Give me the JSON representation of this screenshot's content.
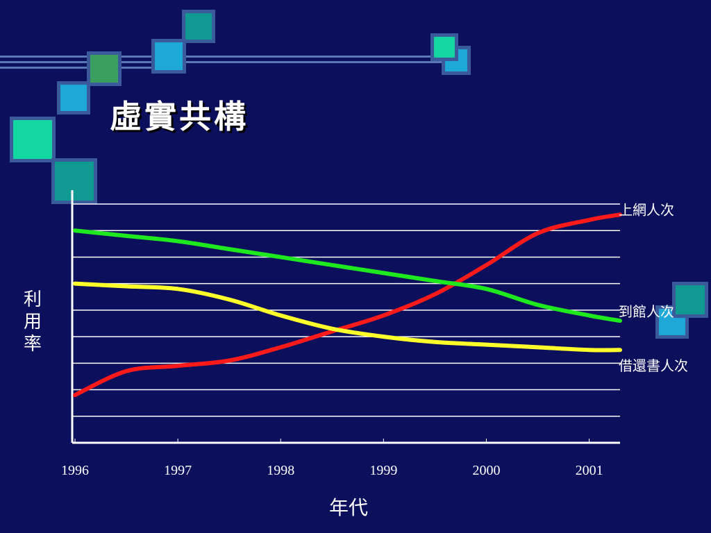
{
  "slide": {
    "title": "虛實共構"
  },
  "decor": {
    "colors": [
      "#0f9a92",
      "#1da8d8",
      "#3aa060",
      "#13d6a0",
      "#3a5a9c"
    ]
  },
  "chart_data": {
    "type": "line",
    "xlabel": "年代",
    "ylabel": "利用率",
    "x_ticks": [
      "1996",
      "1997",
      "1998",
      "1999",
      "2000",
      "2001"
    ],
    "x": [
      1996.0,
      1996.5,
      1997.0,
      1997.5,
      1998.0,
      1998.5,
      1999.0,
      1999.5,
      2000.0,
      2000.5,
      2001.0,
      2001.3
    ],
    "ylim": [
      0,
      9
    ],
    "grid": true,
    "legend": "inline-right",
    "series": [
      {
        "name": "上網人次",
        "color": "#ff1a1a",
        "values": [
          1.8,
          2.7,
          2.9,
          3.1,
          3.6,
          4.2,
          4.8,
          5.6,
          6.7,
          7.9,
          8.4,
          8.6
        ]
      },
      {
        "name": "到館人次",
        "color": "#1ee81e",
        "values": [
          8.0,
          7.8,
          7.6,
          7.3,
          7.0,
          6.7,
          6.4,
          6.1,
          5.8,
          5.2,
          4.8,
          4.6
        ]
      },
      {
        "name": "借還書人次",
        "color": "#ffff2a",
        "values": [
          6.0,
          5.9,
          5.8,
          5.4,
          4.8,
          4.3,
          4.0,
          3.8,
          3.7,
          3.6,
          3.5,
          3.5
        ]
      }
    ]
  }
}
